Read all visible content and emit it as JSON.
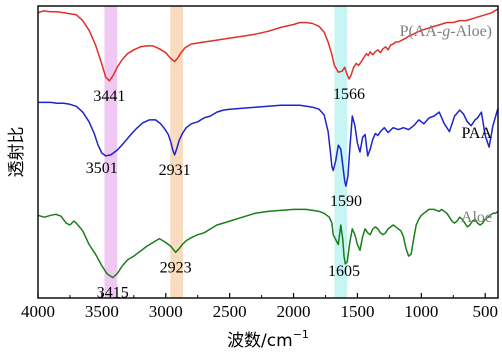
{
  "chart_data": {
    "type": "line",
    "xlabel": "波数/cm",
    "xlabel_sup": "−1",
    "ylabel": "透射比",
    "xlim": [
      4000,
      400
    ],
    "x_ticks": [
      4000,
      3500,
      3000,
      2500,
      2000,
      1500,
      1000,
      500
    ],
    "x_tick_labels": [
      "4000",
      "3500",
      "3000",
      "2500",
      "2000",
      "1500",
      "1000",
      "500"
    ],
    "y_ticks_shown": false,
    "grid": false,
    "highlight_bands": [
      {
        "center": 3430,
        "width": 100,
        "color": "#f0c8f4"
      },
      {
        "center": 2915,
        "width": 100,
        "color": "#f9dcc0"
      },
      {
        "center": 1630,
        "width": 100,
        "color": "#c6f5f4"
      }
    ],
    "series": [
      {
        "name": "P(AA-g-Aloe)",
        "color": "#e0302a",
        "label_color": "#7f7f7f",
        "offset": 2.0,
        "x": [
          4000,
          3960,
          3900,
          3850,
          3800,
          3750,
          3700,
          3650,
          3600,
          3550,
          3500,
          3470,
          3441,
          3410,
          3380,
          3340,
          3300,
          3250,
          3200,
          3150,
          3100,
          3050,
          3000,
          2960,
          2931,
          2910,
          2880,
          2850,
          2800,
          2700,
          2600,
          2500,
          2400,
          2300,
          2200,
          2100,
          2000,
          1950,
          1900,
          1850,
          1800,
          1760,
          1730,
          1700,
          1680,
          1650,
          1620,
          1600,
          1585,
          1566,
          1550,
          1530,
          1510,
          1490,
          1470,
          1450,
          1430,
          1415,
          1400,
          1380,
          1360,
          1340,
          1320,
          1300,
          1280,
          1260,
          1240,
          1220,
          1200,
          1180,
          1150,
          1120,
          1100,
          1080,
          1050,
          1000,
          950,
          900,
          850,
          800,
          750,
          700,
          650,
          600,
          550,
          500,
          450,
          400
        ],
        "y": [
          0.88,
          0.9,
          0.89,
          0.89,
          0.88,
          0.87,
          0.86,
          0.8,
          0.7,
          0.55,
          0.35,
          0.22,
          0.18,
          0.24,
          0.32,
          0.4,
          0.46,
          0.5,
          0.53,
          0.54,
          0.54,
          0.51,
          0.47,
          0.41,
          0.38,
          0.41,
          0.47,
          0.52,
          0.56,
          0.58,
          0.6,
          0.62,
          0.64,
          0.66,
          0.69,
          0.73,
          0.76,
          0.78,
          0.78,
          0.77,
          0.74,
          0.68,
          0.58,
          0.45,
          0.34,
          0.27,
          0.28,
          0.32,
          0.26,
          0.2,
          0.24,
          0.32,
          0.36,
          0.34,
          0.38,
          0.42,
          0.46,
          0.44,
          0.48,
          0.45,
          0.48,
          0.5,
          0.47,
          0.51,
          0.53,
          0.5,
          0.55,
          0.56,
          0.58,
          0.58,
          0.6,
          0.62,
          0.64,
          0.65,
          0.67,
          0.7,
          0.72,
          0.74,
          0.76,
          0.78,
          0.78,
          0.8,
          0.8,
          0.82,
          0.84,
          0.86,
          0.88,
          0.92
        ]
      },
      {
        "name": "PAA",
        "color": "#1d24c9",
        "label_color": "#000000",
        "offset": 1.0,
        "x": [
          4000,
          3950,
          3900,
          3850,
          3800,
          3750,
          3700,
          3650,
          3600,
          3560,
          3530,
          3501,
          3470,
          3430,
          3380,
          3330,
          3280,
          3230,
          3180,
          3130,
          3080,
          3040,
          3010,
          2980,
          2960,
          2945,
          2931,
          2915,
          2895,
          2870,
          2840,
          2800,
          2750,
          2700,
          2650,
          2600,
          2550,
          2500,
          2400,
          2300,
          2200,
          2100,
          2000,
          1950,
          1900,
          1850,
          1800,
          1760,
          1730,
          1710,
          1700,
          1690,
          1670,
          1650,
          1630,
          1610,
          1600,
          1590,
          1575,
          1560,
          1540,
          1520,
          1500,
          1480,
          1460,
          1440,
          1420,
          1400,
          1380,
          1360,
          1340,
          1320,
          1290,
          1260,
          1220,
          1180,
          1140,
          1100,
          1060,
          1020,
          980,
          940,
          900,
          860,
          820,
          780,
          740,
          700,
          670,
          640,
          610,
          580,
          560,
          530,
          500,
          470,
          440,
          400
        ],
        "y": [
          0.96,
          0.96,
          0.96,
          0.95,
          0.95,
          0.94,
          0.92,
          0.86,
          0.76,
          0.64,
          0.52,
          0.44,
          0.41,
          0.42,
          0.47,
          0.54,
          0.62,
          0.69,
          0.75,
          0.78,
          0.78,
          0.74,
          0.69,
          0.63,
          0.55,
          0.47,
          0.42,
          0.48,
          0.57,
          0.64,
          0.7,
          0.74,
          0.76,
          0.8,
          0.82,
          0.86,
          0.88,
          0.89,
          0.9,
          0.91,
          0.92,
          0.93,
          0.93,
          0.93,
          0.92,
          0.91,
          0.89,
          0.83,
          0.66,
          0.43,
          0.3,
          0.26,
          0.36,
          0.52,
          0.48,
          0.26,
          0.15,
          0.1,
          0.2,
          0.48,
          0.82,
          0.72,
          0.54,
          0.45,
          0.6,
          0.63,
          0.41,
          0.48,
          0.58,
          0.64,
          0.62,
          0.66,
          0.7,
          0.65,
          0.7,
          0.68,
          0.7,
          0.68,
          0.72,
          0.78,
          0.74,
          0.8,
          0.82,
          0.86,
          0.74,
          0.66,
          0.82,
          0.88,
          0.84,
          0.76,
          0.72,
          0.78,
          0.8,
          0.86,
          0.62,
          0.5,
          0.72,
          0.9
        ]
      },
      {
        "name": "Aloe",
        "color": "#1a7e1a",
        "label_color": "#7f7f7f",
        "offset": 0.0,
        "x": [
          4000,
          3950,
          3900,
          3860,
          3820,
          3780,
          3750,
          3720,
          3700,
          3650,
          3600,
          3550,
          3500,
          3460,
          3415,
          3380,
          3340,
          3300,
          3250,
          3200,
          3150,
          3100,
          3050,
          3000,
          2960,
          2923,
          2900,
          2870,
          2840,
          2800,
          2750,
          2700,
          2650,
          2600,
          2550,
          2500,
          2400,
          2300,
          2200,
          2100,
          2000,
          1950,
          1900,
          1850,
          1800,
          1760,
          1740,
          1720,
          1700,
          1690,
          1670,
          1650,
          1630,
          1615,
          1605,
          1595,
          1580,
          1560,
          1540,
          1520,
          1500,
          1480,
          1460,
          1440,
          1420,
          1400,
          1380,
          1360,
          1340,
          1320,
          1300,
          1280,
          1260,
          1240,
          1220,
          1200,
          1180,
          1160,
          1140,
          1120,
          1100,
          1080,
          1060,
          1040,
          1020,
          1000,
          980,
          960,
          940,
          920,
          900,
          880,
          860,
          840,
          820,
          800,
          780,
          760,
          740,
          720,
          700,
          680,
          660,
          640,
          620,
          600,
          580,
          560,
          540,
          520,
          500,
          480,
          460,
          440,
          420,
          400
        ],
        "y": [
          0.8,
          0.78,
          0.8,
          0.81,
          0.79,
          0.72,
          0.7,
          0.74,
          0.72,
          0.64,
          0.5,
          0.4,
          0.28,
          0.2,
          0.16,
          0.2,
          0.28,
          0.34,
          0.38,
          0.43,
          0.48,
          0.52,
          0.56,
          0.52,
          0.48,
          0.42,
          0.45,
          0.5,
          0.54,
          0.57,
          0.6,
          0.62,
          0.66,
          0.7,
          0.72,
          0.74,
          0.78,
          0.82,
          0.84,
          0.85,
          0.86,
          0.86,
          0.86,
          0.85,
          0.84,
          0.82,
          0.8,
          0.78,
          0.72,
          0.6,
          0.55,
          0.5,
          0.7,
          0.55,
          0.38,
          0.3,
          0.32,
          0.52,
          0.66,
          0.6,
          0.5,
          0.44,
          0.58,
          0.66,
          0.62,
          0.6,
          0.66,
          0.68,
          0.66,
          0.62,
          0.6,
          0.62,
          0.66,
          0.68,
          0.7,
          0.68,
          0.66,
          0.64,
          0.58,
          0.46,
          0.38,
          0.4,
          0.56,
          0.7,
          0.76,
          0.8,
          0.82,
          0.84,
          0.86,
          0.86,
          0.86,
          0.85,
          0.84,
          0.86,
          0.84,
          0.82,
          0.78,
          0.74,
          0.72,
          0.74,
          0.78,
          0.76,
          0.72,
          0.68,
          0.7,
          0.74,
          0.76,
          0.72,
          0.7,
          0.72,
          0.76,
          0.78,
          0.8,
          0.82,
          0.82,
          0.84
        ]
      }
    ],
    "annotations": [
      {
        "text": "3441",
        "series": 0,
        "x": 3441
      },
      {
        "text": "1566",
        "series": 0,
        "x": 1566
      },
      {
        "text": "3501",
        "series": 1,
        "x": 3501
      },
      {
        "text": "2931",
        "series": 1,
        "x": 2931
      },
      {
        "text": "1590",
        "series": 1,
        "x": 1590
      },
      {
        "text": "3415",
        "series": 2,
        "x": 3415
      },
      {
        "text": "2923",
        "series": 2,
        "x": 2923
      },
      {
        "text": "1605",
        "series": 2,
        "x": 1605
      }
    ]
  }
}
